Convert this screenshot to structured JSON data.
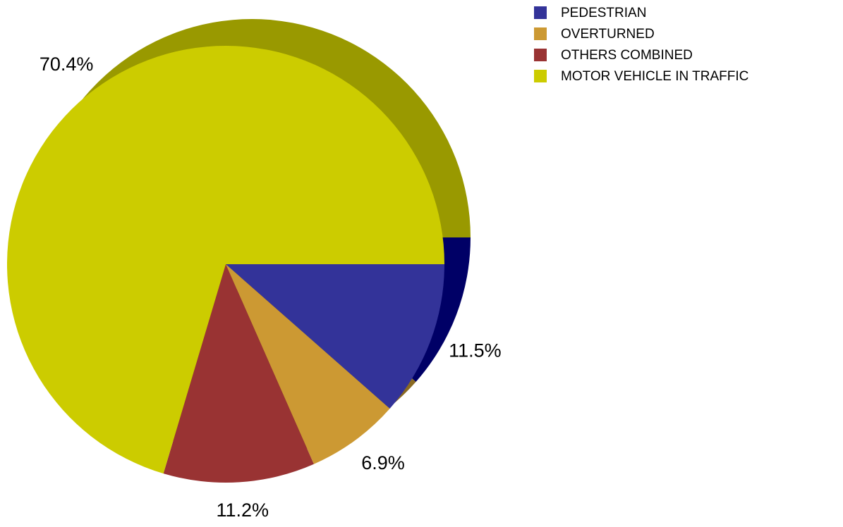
{
  "chart_data": {
    "type": "pie",
    "categories": [
      "PEDESTRIAN",
      "OVERTURNED",
      "OTHERS COMBINED",
      "MOTOR VEHICLE IN TRAFFIC"
    ],
    "values": [
      11.5,
      6.9,
      11.2,
      70.4
    ],
    "value_labels": [
      "11.5%",
      "6.9%",
      "11.2%",
      "70.4%"
    ],
    "colors": [
      "#333399",
      "#cc9933",
      "#993333",
      "#cccc00"
    ],
    "shadow_colors": [
      "#000066",
      "#8a6a22",
      "#662222",
      "#999900"
    ],
    "legend": "top-right"
  }
}
